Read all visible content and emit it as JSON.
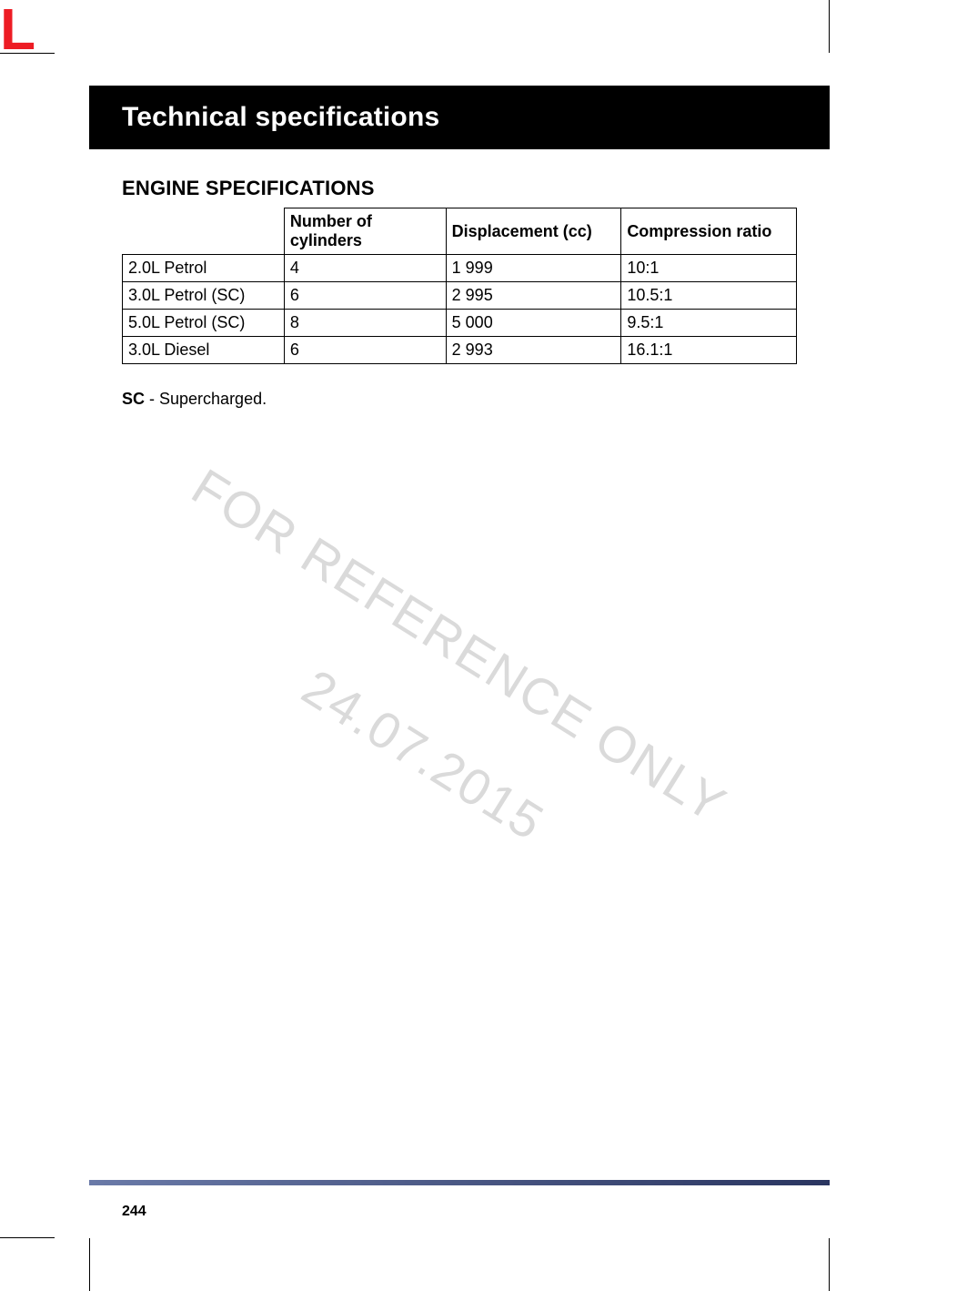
{
  "brand_letter": "L",
  "header": {
    "title": "Technical specifications"
  },
  "section": {
    "title": "ENGINE SPECIFICATIONS"
  },
  "table": {
    "columns": [
      "",
      "Number of cylinders",
      "Displacement (cc)",
      "Compression ratio"
    ],
    "rows": [
      [
        "2.0L Petrol",
        "4",
        "1 999",
        "10:1"
      ],
      [
        "3.0L Petrol (SC)",
        "6",
        "2 995",
        "10.5:1"
      ],
      [
        "5.0L Petrol (SC)",
        "8",
        "5 000",
        "9.5:1"
      ],
      [
        "3.0L Diesel",
        "6",
        "2 993",
        "16.1:1"
      ]
    ],
    "col_widths": [
      "24%",
      "24%",
      "26%",
      "26%"
    ]
  },
  "note": {
    "abbr": "SC",
    "text": " - Supercharged."
  },
  "watermark": {
    "line1": "FOR REFERENCE ONLY",
    "line2": "24.07.2015"
  },
  "page_number": "244",
  "colors": {
    "brand": "#ed1c24",
    "header_bg": "#000000",
    "header_fg": "#ffffff",
    "rule_start": "#6a7aa8",
    "rule_end": "#2a3560",
    "watermark": "#bdbdbd"
  }
}
